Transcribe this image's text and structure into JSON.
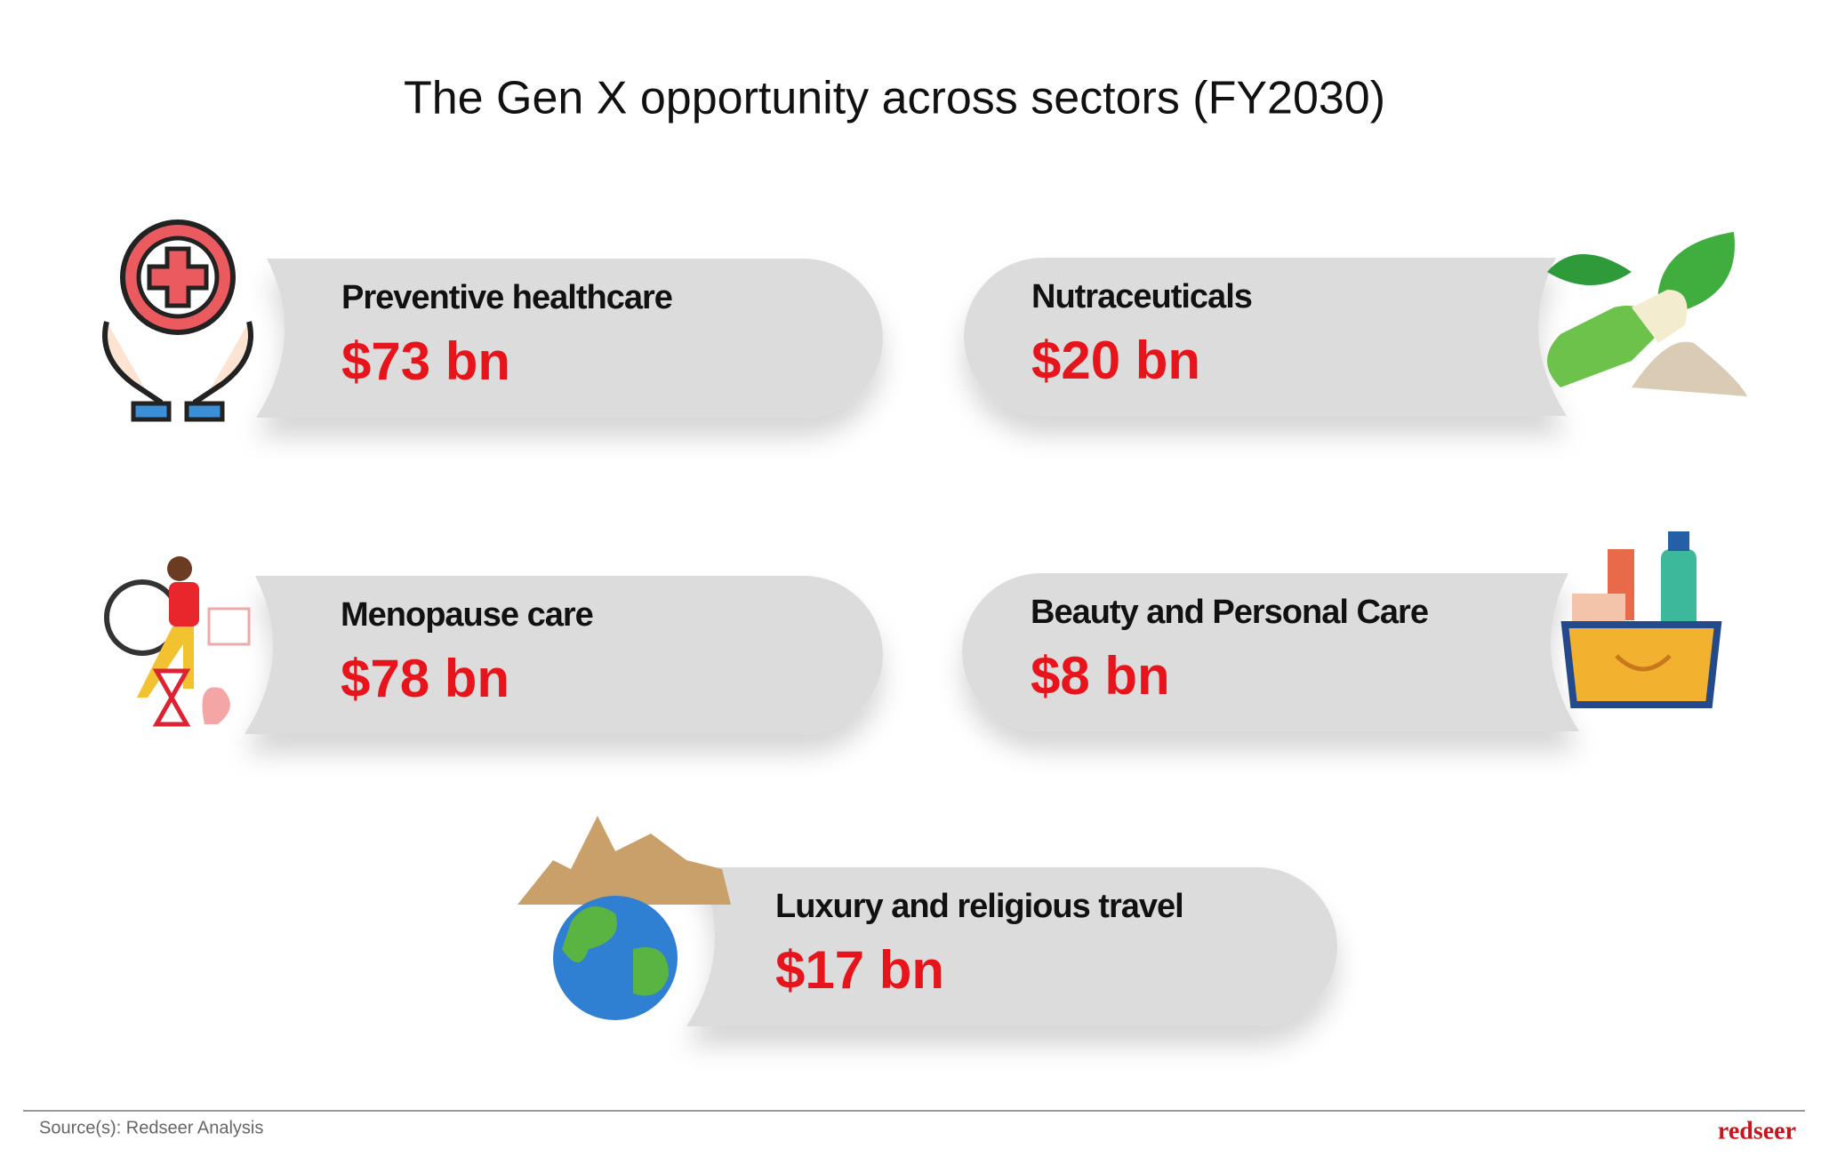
{
  "title": "The Gen X opportunity across sectors (FY2030)",
  "sectors": [
    {
      "label": "Preventive healthcare",
      "value": "$73 bn"
    },
    {
      "label": "Nutraceuticals",
      "value": "$20 bn"
    },
    {
      "label": "Menopause care",
      "value": "$78 bn"
    },
    {
      "label": "Beauty and Personal Care",
      "value": "$8 bn"
    },
    {
      "label": "Luxury and religious travel",
      "value": "$17 bn"
    }
  ],
  "footer": {
    "source": "Source(s): Redseer Analysis",
    "logo": "redseer"
  }
}
